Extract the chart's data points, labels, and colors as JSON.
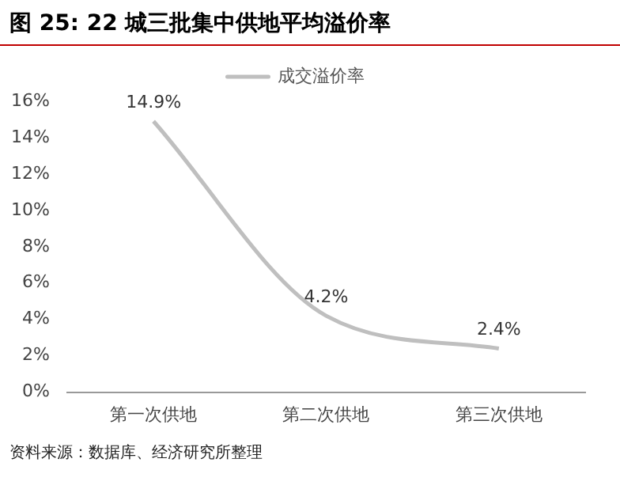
{
  "chart_data": {
    "type": "line",
    "title": "图 25:  22 城三批集中供地平均溢价率",
    "categories": [
      "第一次供地",
      "第二次供地",
      "第三次供地"
    ],
    "series": [
      {
        "name": "成交溢价率",
        "color": "#bfbfbf",
        "values": [
          14.9,
          4.2,
          2.4
        ],
        "value_labels": [
          "14.9%",
          "4.2%",
          "2.4%"
        ]
      }
    ],
    "ylim": [
      0,
      16
    ],
    "yticks": [
      {
        "value": 0,
        "label": "0%"
      },
      {
        "value": 2,
        "label": "2%"
      },
      {
        "value": 4,
        "label": "4%"
      },
      {
        "value": 6,
        "label": "6%"
      },
      {
        "value": 8,
        "label": "8%"
      },
      {
        "value": 10,
        "label": "10%"
      },
      {
        "value": 12,
        "label": "12%"
      },
      {
        "value": 14,
        "label": "14%"
      },
      {
        "value": 16,
        "label": "16%"
      }
    ],
    "grid": false,
    "legend": "top",
    "marker": "none",
    "line_style": "solid",
    "annotations": [
      "资料来源：数据库、经济研究所整理"
    ]
  }
}
